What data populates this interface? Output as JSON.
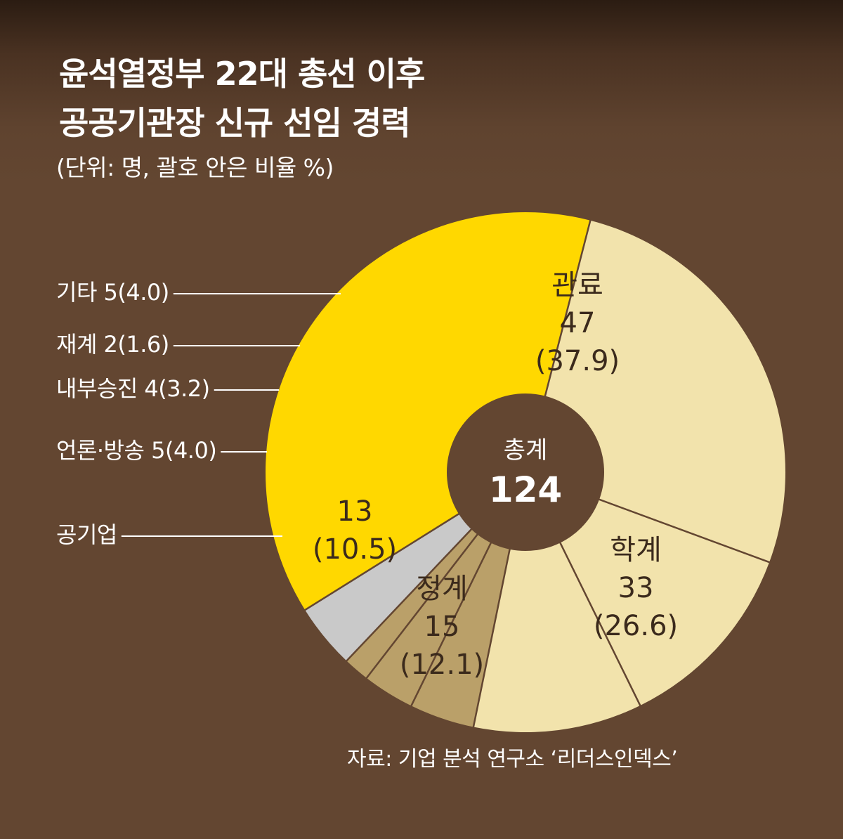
{
  "header": {
    "title_line_1": "윤석열정부 22대 총선 이후",
    "title_line_2": "공공기관장 신규 선임 경력",
    "subtitle": "(단위: 명, 괄호 안은 비율 %)"
  },
  "source": "자료: 기업 분석 연구소 ‘리더스인덱스’",
  "colors": {
    "background": "#634631",
    "hole": "#634631",
    "divider": "#634631",
    "leader_line": "#ffffff"
  },
  "chart_data": {
    "type": "pie",
    "donut": true,
    "title": "윤석열정부 22대 총선 이후 공공기관장 신규 선임 경력",
    "unit": "명",
    "total": {
      "label": "총계",
      "value": 124
    },
    "slices": [
      {
        "name": "관료",
        "value": 47,
        "percent": 37.9,
        "color": "#ffd800",
        "label_position": "inside",
        "lines": [
          "관료",
          "47",
          "(37.9)"
        ]
      },
      {
        "name": "학계",
        "value": 33,
        "percent": 26.6,
        "color": "#f2e3ac",
        "label_position": "inside",
        "lines": [
          "학계",
          "33",
          "(26.6)"
        ]
      },
      {
        "name": "정계",
        "value": 15,
        "percent": 12.1,
        "color": "#f2e3ac",
        "label_position": "inside",
        "lines": [
          "정계",
          "15",
          "(12.1)"
        ]
      },
      {
        "name": "공기업",
        "value": 13,
        "percent": 10.5,
        "color": "#f2e3ac",
        "label_position": "inside-and-outside",
        "lines": [
          "13",
          "(10.5)"
        ],
        "outside_label": "공기업"
      },
      {
        "name": "언론·방송",
        "value": 5,
        "percent": 4.0,
        "color": "#baa069",
        "label_position": "outside",
        "outside_label": "언론·방송 5(4.0)"
      },
      {
        "name": "내부승진",
        "value": 4,
        "percent": 3.2,
        "color": "#baa069",
        "label_position": "outside",
        "outside_label": "내부승진 4(3.2)"
      },
      {
        "name": "재계",
        "value": 2,
        "percent": 1.6,
        "color": "#baa069",
        "label_position": "outside",
        "outside_label": "재계 2(1.6)"
      },
      {
        "name": "기타",
        "value": 5,
        "percent": 4.0,
        "color": "#c9c9c9",
        "label_position": "outside",
        "outside_label": "기타 5(4.0)"
      }
    ]
  }
}
